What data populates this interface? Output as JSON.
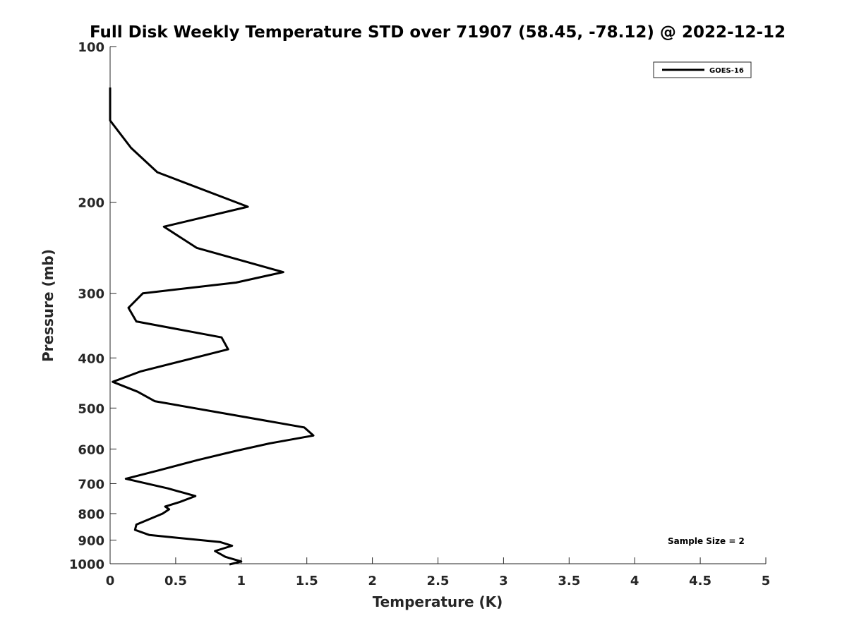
{
  "chart_data": {
    "type": "line",
    "title": "Full Disk Weekly Temperature STD over 71907 (58.45, -78.12) @ 2022-12-12",
    "xlabel": "Temperature (K)",
    "ylabel": "Pressure (mb)",
    "xlim": [
      0,
      5
    ],
    "ylim": [
      100,
      1000
    ],
    "y_scale": "log",
    "y_reversed": true,
    "grid": false,
    "legend_position": "top-right",
    "x_ticks": [
      "0",
      "0.5",
      "1",
      "1.5",
      "2",
      "2.5",
      "3",
      "3.5",
      "4",
      "4.5",
      "5"
    ],
    "y_ticks": [
      "100",
      "200",
      "300",
      "400",
      "500",
      "600",
      "700",
      "800",
      "900",
      "1000"
    ],
    "series": [
      {
        "name": "GOES-16",
        "color": "#000000",
        "x": [
          0.0,
          0.0,
          0.0,
          0.16,
          0.36,
          1.05,
          0.41,
          0.66,
          1.32,
          0.96,
          0.25,
          0.14,
          0.2,
          0.85,
          0.9,
          0.23,
          0.02,
          0.21,
          0.34,
          1.48,
          1.55,
          1.22,
          0.96,
          0.67,
          0.37,
          0.12,
          0.44,
          0.65,
          0.53,
          0.42,
          0.45,
          0.4,
          0.2,
          0.19,
          0.3,
          0.84,
          0.93,
          0.8,
          0.88,
          1.0,
          0.91
        ],
        "y": [
          120,
          133,
          139,
          157,
          175,
          204,
          223,
          245,
          273,
          286,
          300,
          320,
          340,
          365,
          385,
          425,
          445,
          465,
          485,
          545,
          565,
          585,
          605,
          630,
          660,
          685,
          715,
          740,
          760,
          775,
          785,
          800,
          840,
          860,
          880,
          908,
          923,
          945,
          970,
          990,
          1010
        ]
      }
    ],
    "annotations": [
      "Sample Size = 2"
    ]
  }
}
